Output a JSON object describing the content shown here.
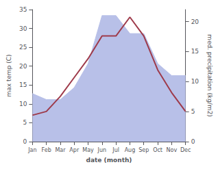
{
  "chart_data": {
    "type": "line",
    "categories": [
      "Jan",
      "Feb",
      "Mar",
      "Apr",
      "May",
      "Jun",
      "Jul",
      "Aug",
      "Sep",
      "Oct",
      "Nov",
      "Dec"
    ],
    "xlabel": "date (month)",
    "ylabel": "max temp (C)",
    "y2label": "med. precipitation (kg/m2)",
    "series": [
      {
        "type": "area",
        "axis": "y2",
        "color": "#b8c0e8",
        "values": [
          8,
          7,
          7,
          9,
          13,
          21,
          21,
          18,
          18,
          13,
          11,
          11
        ]
      },
      {
        "type": "line",
        "color": "#9e3a4a",
        "values": [
          7,
          8,
          12,
          17,
          22,
          28,
          28,
          33,
          28,
          19,
          13,
          8
        ]
      }
    ],
    "ylim": [
      0,
      35
    ],
    "yticks": [
      0,
      5,
      10,
      15,
      20,
      25,
      30,
      35
    ],
    "y2lim": [
      0,
      22
    ],
    "y2ticks": [
      0,
      5,
      10,
      15,
      20
    ],
    "grid": false
  }
}
